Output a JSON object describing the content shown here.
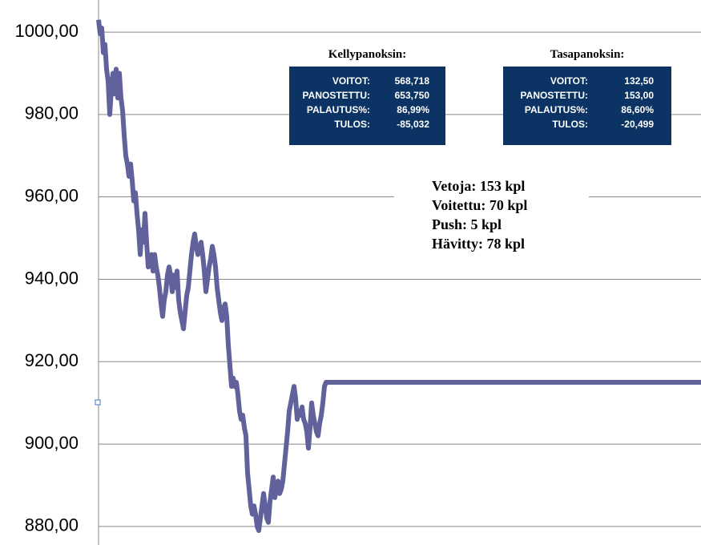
{
  "chart_data": {
    "type": "line",
    "x": [
      0,
      1,
      2,
      3,
      4,
      5,
      6,
      7,
      8,
      9,
      10,
      11,
      12,
      13,
      14,
      15,
      16,
      17,
      18,
      19,
      20,
      21,
      22,
      23,
      24,
      25,
      26,
      27,
      28,
      29,
      30,
      31,
      32,
      33,
      34,
      35,
      36,
      37,
      38,
      39,
      40,
      41,
      42,
      43,
      44,
      45,
      46,
      47,
      48,
      49,
      50,
      51,
      52,
      53,
      54,
      55,
      56,
      57,
      58,
      59,
      60,
      61,
      62,
      63,
      64,
      65,
      66,
      67,
      68,
      69,
      70,
      71,
      72,
      73,
      74,
      75,
      76,
      77,
      78,
      79,
      80,
      81,
      82,
      83,
      84,
      85,
      86,
      87,
      88,
      89,
      90,
      91,
      92,
      93,
      94,
      95,
      96,
      97,
      98,
      99,
      100,
      101,
      102,
      103,
      104,
      105,
      106,
      107,
      108,
      109,
      110,
      111,
      112,
      113,
      114,
      115,
      116,
      117,
      118,
      119,
      120,
      121,
      122,
      123,
      124,
      125,
      126,
      127,
      128,
      129,
      130,
      131,
      132,
      133,
      134,
      135,
      136,
      137,
      138,
      139,
      140,
      141,
      142,
      376
    ],
    "series": [
      {
        "color": "#61629b",
        "values": [
          1003,
          999.6,
          1001,
          995,
          997,
          991,
          988,
          980,
          986,
          990,
          985,
          991,
          984,
          990,
          984,
          981,
          975,
          970,
          968,
          965,
          968,
          964,
          959,
          961,
          956,
          952,
          946,
          952,
          949,
          956,
          949,
          943,
          945,
          946,
          942,
          946,
          943,
          941,
          938,
          934,
          931,
          935,
          937,
          941,
          943,
          941,
          937,
          941,
          938,
          942,
          935,
          932,
          930,
          928,
          932,
          936,
          938,
          942,
          946,
          949,
          951,
          948,
          946,
          947,
          949,
          946,
          942,
          937,
          940,
          943,
          945,
          948,
          946,
          943,
          938,
          935,
          932,
          930,
          933,
          934,
          931,
          924,
          919,
          914,
          916,
          914,
          915,
          912,
          908,
          906,
          907,
          904,
          902,
          893,
          889,
          885,
          883,
          885,
          883,
          880,
          879,
          882,
          885,
          888,
          885,
          882,
          881,
          886,
          889,
          892,
          887,
          889,
          891,
          888,
          889,
          891,
          895,
          899,
          903,
          908,
          910,
          912,
          914,
          911,
          906,
          908,
          907,
          909,
          906,
          905,
          903,
          899,
          904,
          910,
          907,
          905,
          903,
          902,
          905,
          907,
          910,
          914,
          915,
          915
        ]
      }
    ],
    "xlim": [
      0,
      376
    ],
    "ylim": [
      875.5,
      1007.8
    ],
    "yticks": [
      {
        "value": 880,
        "label": "880,00"
      },
      {
        "value": 900,
        "label": "900,00"
      },
      {
        "value": 920,
        "label": "920,00"
      },
      {
        "value": 940,
        "label": "940,00"
      },
      {
        "value": 960,
        "label": "960,00"
      },
      {
        "value": 980,
        "label": "980,00"
      },
      {
        "value": 1000,
        "label": "1000,00"
      }
    ],
    "grid": true,
    "annotations": {
      "kelly": {
        "title": "Kellypanoksin:",
        "rows": [
          [
            "VOITOT:",
            "568,718"
          ],
          [
            "PANOSTETTU:",
            "653,750"
          ],
          [
            "PALAUTUS%:",
            "86,99%"
          ],
          [
            "TULOS:",
            "-85,032"
          ]
        ]
      },
      "tasa": {
        "title": "Tasapanoksin:",
        "rows": [
          [
            "VOITOT:",
            "132,50"
          ],
          [
            "PANOSTETTU:",
            "153,00"
          ],
          [
            "PALAUTUS%:",
            "86,60%"
          ],
          [
            "TULOS:",
            "-20,499"
          ]
        ]
      },
      "stats": [
        "Vetoja: 153 kpl",
        "Voitettu: 70 kpl",
        "Push: 5 kpl",
        "Hävitty: 78 kpl"
      ]
    }
  }
}
